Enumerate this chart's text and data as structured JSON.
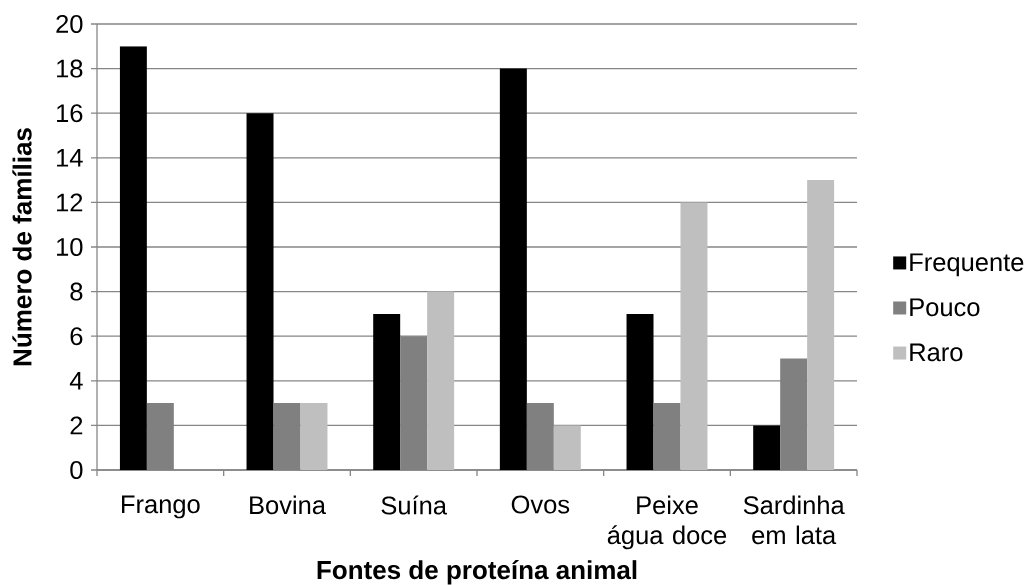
{
  "chart_data": {
    "type": "bar",
    "xlabel": "Fontes de proteína animal",
    "ylabel": "Número de famílias",
    "categories": [
      "Frango",
      "Bovina",
      "Suína",
      "Ovos",
      "Peixe água doce",
      "Sardinha em lata"
    ],
    "series": [
      {
        "name": "Frequente",
        "color": "#000000",
        "values": [
          19,
          16,
          7,
          18,
          7,
          2
        ]
      },
      {
        "name": "Pouco",
        "color": "#808080",
        "values": [
          3,
          3,
          6,
          3,
          3,
          5
        ]
      },
      {
        "name": "Raro",
        "color": "#bfbfbf",
        "values": [
          0,
          3,
          8,
          2,
          12,
          13
        ]
      }
    ],
    "ylim": [
      0,
      20
    ],
    "yticks": [
      0,
      2,
      4,
      6,
      8,
      10,
      12,
      14,
      16,
      18,
      20
    ],
    "grid": "y",
    "legend": "right"
  }
}
